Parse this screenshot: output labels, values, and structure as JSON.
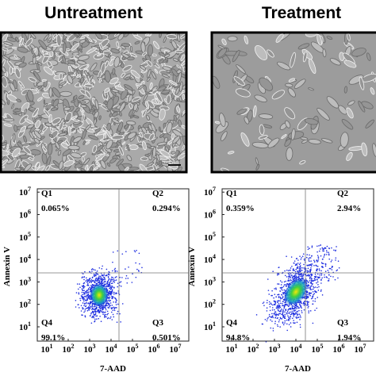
{
  "panels": [
    {
      "title": "Untreatment",
      "y_label": "Annexin V",
      "x_label": "7-AAD",
      "quadrants": [
        {
          "label": "Q1",
          "value": "0.065%"
        },
        {
          "label": "Q2",
          "value": "0.294%"
        },
        {
          "label": "Q3",
          "value": "0.501%"
        },
        {
          "label": "Q4",
          "value": "99.1%"
        }
      ],
      "y_ticks": [
        {
          "base": "10",
          "exp": "1"
        },
        {
          "base": "10",
          "exp": "2"
        },
        {
          "base": "10",
          "exp": "3"
        },
        {
          "base": "10",
          "exp": "4"
        },
        {
          "base": "10",
          "exp": "5"
        },
        {
          "base": "10",
          "exp": "6"
        },
        {
          "base": "10",
          "exp": "7"
        }
      ],
      "x_ticks": [
        {
          "base": "10",
          "exp": "1"
        },
        {
          "base": "10",
          "exp": "2"
        },
        {
          "base": "10",
          "exp": "3"
        },
        {
          "base": "10",
          "exp": "4"
        },
        {
          "base": "10",
          "exp": "5"
        },
        {
          "base": "10",
          "exp": "6"
        },
        {
          "base": "10",
          "exp": "7"
        }
      ]
    },
    {
      "title": "Treatment",
      "y_label": "Annexin V",
      "x_label": "7-AAD",
      "quadrants": [
        {
          "label": "Q1",
          "value": "0.359%"
        },
        {
          "label": "Q2",
          "value": "2.94%"
        },
        {
          "label": "Q3",
          "value": "1.94%"
        },
        {
          "label": "Q4",
          "value": "94.8%"
        }
      ],
      "y_ticks": [
        {
          "base": "10",
          "exp": "1"
        },
        {
          "base": "10",
          "exp": "2"
        },
        {
          "base": "10",
          "exp": "3"
        },
        {
          "base": "10",
          "exp": "4"
        },
        {
          "base": "10",
          "exp": "5"
        },
        {
          "base": "10",
          "exp": "6"
        },
        {
          "base": "10",
          "exp": "7"
        }
      ],
      "x_ticks": [
        {
          "base": "10",
          "exp": "1"
        },
        {
          "base": "10",
          "exp": "2"
        },
        {
          "base": "10",
          "exp": "3"
        },
        {
          "base": "10",
          "exp": "4"
        },
        {
          "base": "10",
          "exp": "5"
        },
        {
          "base": "10",
          "exp": "6"
        },
        {
          "base": "10",
          "exp": "7"
        }
      ]
    }
  ]
}
